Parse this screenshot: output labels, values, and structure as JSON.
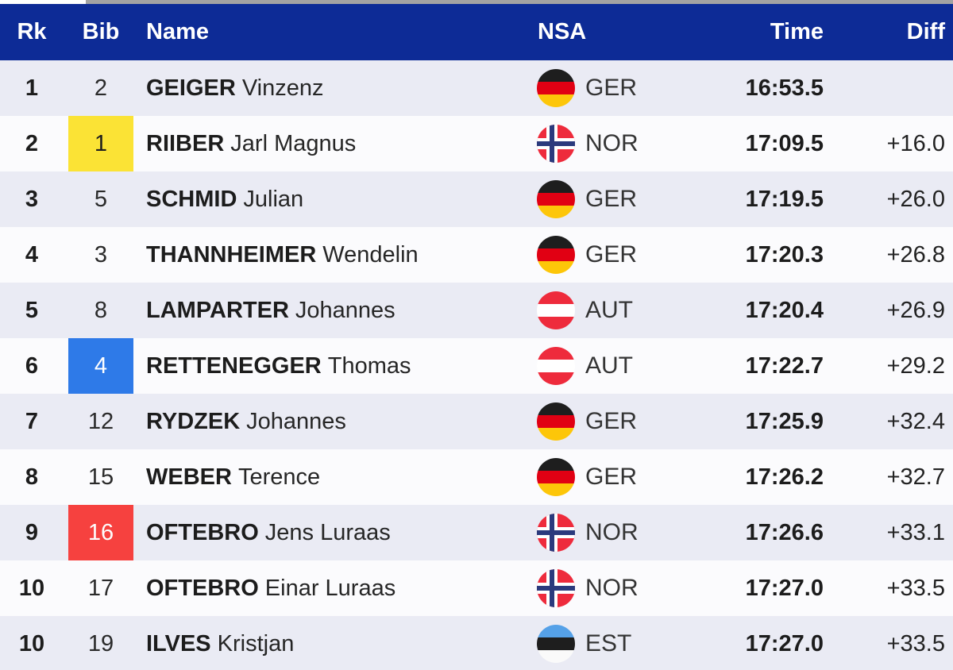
{
  "colors": {
    "header_bg": "#0d2b96",
    "row_odd": "#eaebf4",
    "row_even": "#fbfbfd",
    "bib_yellow": "#fbe335",
    "bib_blue": "#2e7ae8",
    "bib_red": "#f6413f",
    "flag_ger": [
      "#1e1e1e",
      "#e10013",
      "#fdc609"
    ],
    "flag_nor": [
      "#ee2b3c",
      "#ffffff",
      "#2b3a7d"
    ],
    "flag_aut": [
      "#ee2b3c",
      "#ffffff"
    ],
    "flag_est": [
      "#55a1e8",
      "#1e1e1e",
      "#fafafa"
    ]
  },
  "header": {
    "columns": [
      "Rk",
      "Bib",
      "Name",
      "NSA",
      "Time",
      "Diff"
    ]
  },
  "table": {
    "rows": [
      {
        "rank": "1",
        "bib": "2",
        "bib_highlight": null,
        "last_name": "GEIGER",
        "first_name": "Vinzenz",
        "nsa": "GER",
        "time": "16:53.5",
        "diff": ""
      },
      {
        "rank": "2",
        "bib": "1",
        "bib_highlight": "yellow",
        "last_name": "RIIBER",
        "first_name": "Jarl Magnus",
        "nsa": "NOR",
        "time": "17:09.5",
        "diff": "+16.0"
      },
      {
        "rank": "3",
        "bib": "5",
        "bib_highlight": null,
        "last_name": "SCHMID",
        "first_name": "Julian",
        "nsa": "GER",
        "time": "17:19.5",
        "diff": "+26.0"
      },
      {
        "rank": "4",
        "bib": "3",
        "bib_highlight": null,
        "last_name": "THANNHEIMER",
        "first_name": "Wendelin",
        "nsa": "GER",
        "time": "17:20.3",
        "diff": "+26.8"
      },
      {
        "rank": "5",
        "bib": "8",
        "bib_highlight": null,
        "last_name": "LAMPARTER",
        "first_name": "Johannes",
        "nsa": "AUT",
        "time": "17:20.4",
        "diff": "+26.9"
      },
      {
        "rank": "6",
        "bib": "4",
        "bib_highlight": "blue",
        "last_name": "RETTENEGGER",
        "first_name": "Thomas",
        "nsa": "AUT",
        "time": "17:22.7",
        "diff": "+29.2"
      },
      {
        "rank": "7",
        "bib": "12",
        "bib_highlight": null,
        "last_name": "RYDZEK",
        "first_name": "Johannes",
        "nsa": "GER",
        "time": "17:25.9",
        "diff": "+32.4"
      },
      {
        "rank": "8",
        "bib": "15",
        "bib_highlight": null,
        "last_name": "WEBER",
        "first_name": "Terence",
        "nsa": "GER",
        "time": "17:26.2",
        "diff": "+32.7"
      },
      {
        "rank": "9",
        "bib": "16",
        "bib_highlight": "red",
        "last_name": "OFTEBRO",
        "first_name": "Jens Luraas",
        "nsa": "NOR",
        "time": "17:26.6",
        "diff": "+33.1"
      },
      {
        "rank": "10",
        "bib": "17",
        "bib_highlight": null,
        "last_name": "OFTEBRO",
        "first_name": "Einar Luraas",
        "nsa": "NOR",
        "time": "17:27.0",
        "diff": "+33.5"
      },
      {
        "rank": "10",
        "bib": "19",
        "bib_highlight": null,
        "last_name": "ILVES",
        "first_name": "Kristjan",
        "nsa": "EST",
        "time": "17:27.0",
        "diff": "+33.5"
      }
    ]
  }
}
